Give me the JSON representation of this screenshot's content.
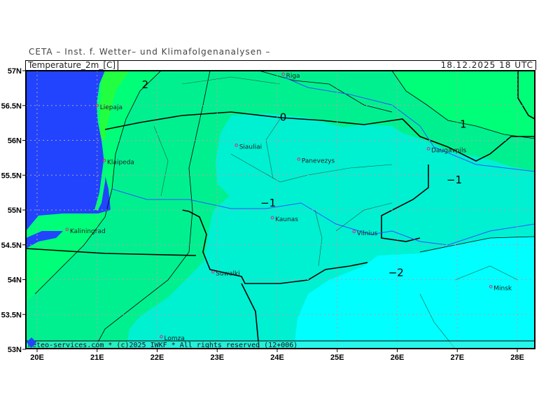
{
  "header": {
    "institute": "CETA – Inst. f. Wetter– und Klimafolgenanalysen –",
    "variable": "Temperature_2m_[C]",
    "valid_time": "18.12.2025 18 UTC"
  },
  "footer": {
    "credit": "meteo-services.com * (c)2025 IWKF * All rights reserved (12+006)"
  },
  "axes": {
    "lat_ticks": [
      "57N",
      "56.5N",
      "56N",
      "55.5N",
      "55N",
      "54.5N",
      "54N",
      "53.5N",
      "53N"
    ],
    "lat_values": [
      57,
      56.5,
      56,
      55.5,
      55,
      54.5,
      54,
      53.5,
      53
    ],
    "lon_ticks": [
      "20E",
      "21E",
      "22E",
      "23E",
      "24E",
      "25E",
      "26E",
      "27E",
      "28E"
    ],
    "lon_values": [
      20,
      21,
      22,
      23,
      24,
      25,
      26,
      27,
      28
    ],
    "lon_range": [
      19.8,
      28.3
    ],
    "lat_range": [
      53,
      57
    ]
  },
  "colors": {
    "sea": "#2244ff",
    "temp_above_2": "#22ff40",
    "temp_1_to_2": "#00ff78",
    "temp_0_to_1": "#00f090",
    "temp_m1_to_0": "#00f0d2",
    "temp_m2_to_m1": "#00f5e0",
    "temp_below_m2": "#00ffff",
    "city_marker": "#e0208a",
    "river": "#3050ff"
  },
  "contour_labels": [
    {
      "text": "2",
      "lon": 21.8,
      "lat": 56.8
    },
    {
      "text": "0",
      "lon": 24.1,
      "lat": 56.33
    },
    {
      "text": "1",
      "lon": 27.1,
      "lat": 56.23
    },
    {
      "text": "−1",
      "lon": 26.95,
      "lat": 55.43
    },
    {
      "text": "−1",
      "lon": 23.85,
      "lat": 55.1
    },
    {
      "text": "−2",
      "lon": 25.98,
      "lat": 54.1
    }
  ],
  "cities": [
    {
      "name": "Riga",
      "lon": 24.1,
      "lat": 56.95
    },
    {
      "name": "Liepaja",
      "lon": 21.0,
      "lat": 56.5
    },
    {
      "name": "Klaipeda",
      "lon": 21.12,
      "lat": 55.71
    },
    {
      "name": "Siauliai",
      "lon": 23.32,
      "lat": 55.93
    },
    {
      "name": "Panevezys",
      "lon": 24.36,
      "lat": 55.73
    },
    {
      "name": "Kaunas",
      "lon": 23.92,
      "lat": 54.89
    },
    {
      "name": "Vilnius",
      "lon": 25.28,
      "lat": 54.69
    },
    {
      "name": "Daugavpils",
      "lon": 26.52,
      "lat": 55.88
    },
    {
      "name": "Kaliningrad",
      "lon": 20.5,
      "lat": 54.72
    },
    {
      "name": "Suwalki",
      "lon": 22.93,
      "lat": 54.11
    },
    {
      "name": "Lomza",
      "lon": 22.07,
      "lat": 53.18
    },
    {
      "name": "Minsk",
      "lon": 27.56,
      "lat": 53.9
    }
  ]
}
